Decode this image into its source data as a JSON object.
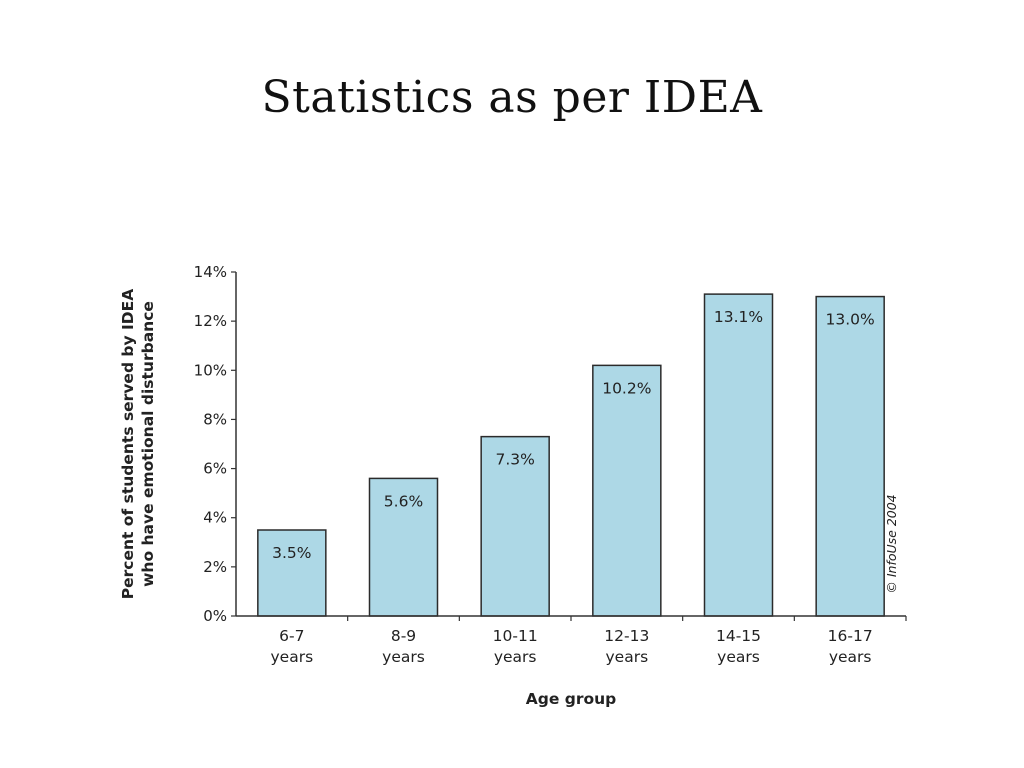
{
  "slide": {
    "title": "Statistics as per IDEA"
  },
  "chart_data": {
    "type": "bar",
    "title": "",
    "categories": [
      "6-7\nyears",
      "8-9\nyears",
      "10-11\nyears",
      "12-13\nyears",
      "14-15\nyears",
      "16-17\nyears"
    ],
    "values": [
      3.5,
      5.6,
      7.3,
      10.2,
      13.1,
      13.0
    ],
    "data_labels": [
      "3.5%",
      "5.6%",
      "7.3%",
      "10.2%",
      "13.1%",
      "13.0%"
    ],
    "xlabel": "Age group",
    "ylabel_lines": [
      "Percent of students served by IDEA",
      "who have emotional disturbance"
    ],
    "ylim": [
      0,
      14
    ],
    "yticks": [
      0,
      2,
      4,
      6,
      8,
      10,
      12,
      14
    ],
    "ytick_labels": [
      "0%",
      "2%",
      "4%",
      "6%",
      "8%",
      "10%",
      "12%",
      "14%"
    ],
    "grid": false,
    "legend": "none",
    "bar_color": "#add8e6",
    "bar_edge_color": "#2b2b2b",
    "annotation": "© InfoUse 2004"
  }
}
